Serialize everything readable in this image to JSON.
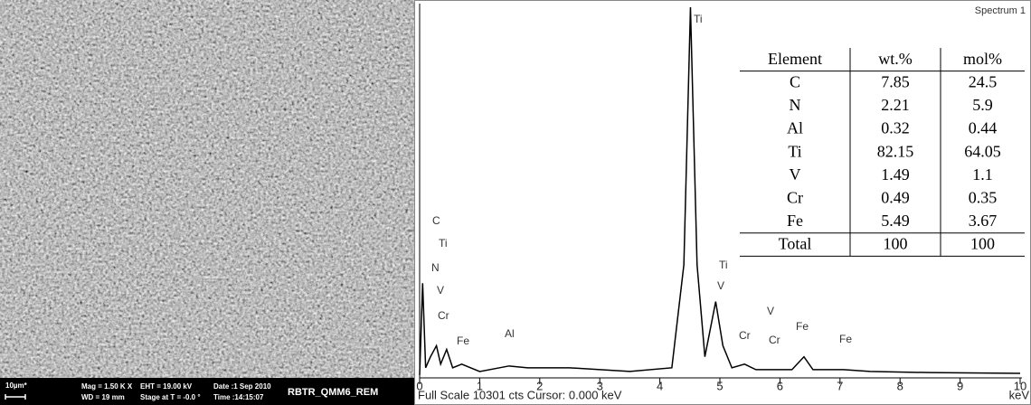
{
  "sem": {
    "scale_bar": "10µm*",
    "mag": "Mag = 1.50 K X",
    "wd": "WD = 19 mm",
    "eht": "EHT = 19.00 kV",
    "stage": "Stage at T = -0.0 °",
    "date": "Date :1 Sep 2010",
    "time": "Time :14:15:07",
    "sample": "RBTR_QMM6_REM"
  },
  "chart_data": {
    "type": "line",
    "title": "Spectrum 1",
    "footer": "Full Scale 10301 cts Cursor: 0.000 keV",
    "x_label": "keV",
    "xlim": [
      0,
      10
    ],
    "xticks": [
      0,
      1,
      2,
      3,
      4,
      5,
      6,
      7,
      8,
      9,
      10
    ],
    "ylim": [
      0,
      100
    ],
    "color": "#000000",
    "x": [
      0,
      0.05,
      0.1,
      0.18,
      0.28,
      0.35,
      0.45,
      0.55,
      0.7,
      1,
      1.49,
      1.8,
      2.5,
      3.5,
      4.2,
      4.4,
      4.51,
      4.62,
      4.75,
      4.93,
      5.05,
      5.2,
      5.41,
      5.6,
      5.95,
      6.2,
      6.4,
      6.55,
      7.06,
      7.5,
      8.5,
      10
    ],
    "values": [
      0,
      25,
      2,
      5,
      8,
      3,
      7,
      2,
      3,
      1,
      2.5,
      2,
      2,
      1,
      2,
      30,
      100,
      30,
      5,
      20,
      8,
      2,
      3,
      1.5,
      1.5,
      1.5,
      5,
      1.5,
      1.5,
      1,
      0.7,
      0.5
    ],
    "peak_labels": [
      "C",
      "Ti",
      "N",
      "V",
      "Cr",
      "Fe",
      "Al",
      "Ti",
      "Ti",
      "V",
      "V",
      "Cr",
      "Cr",
      "Fe",
      "Fe"
    ],
    "table": {
      "header": [
        "Element",
        "wt.%",
        "mol%"
      ],
      "rows": [
        [
          "C",
          7.85,
          24.5
        ],
        [
          "N",
          2.21,
          5.9
        ],
        [
          "Al",
          0.32,
          0.44
        ],
        [
          "Ti",
          82.15,
          64.05
        ],
        [
          "V",
          1.49,
          1.1
        ],
        [
          "Cr",
          0.49,
          0.35
        ],
        [
          "Fe",
          5.49,
          3.67
        ],
        [
          "Total",
          100,
          100
        ]
      ]
    }
  }
}
